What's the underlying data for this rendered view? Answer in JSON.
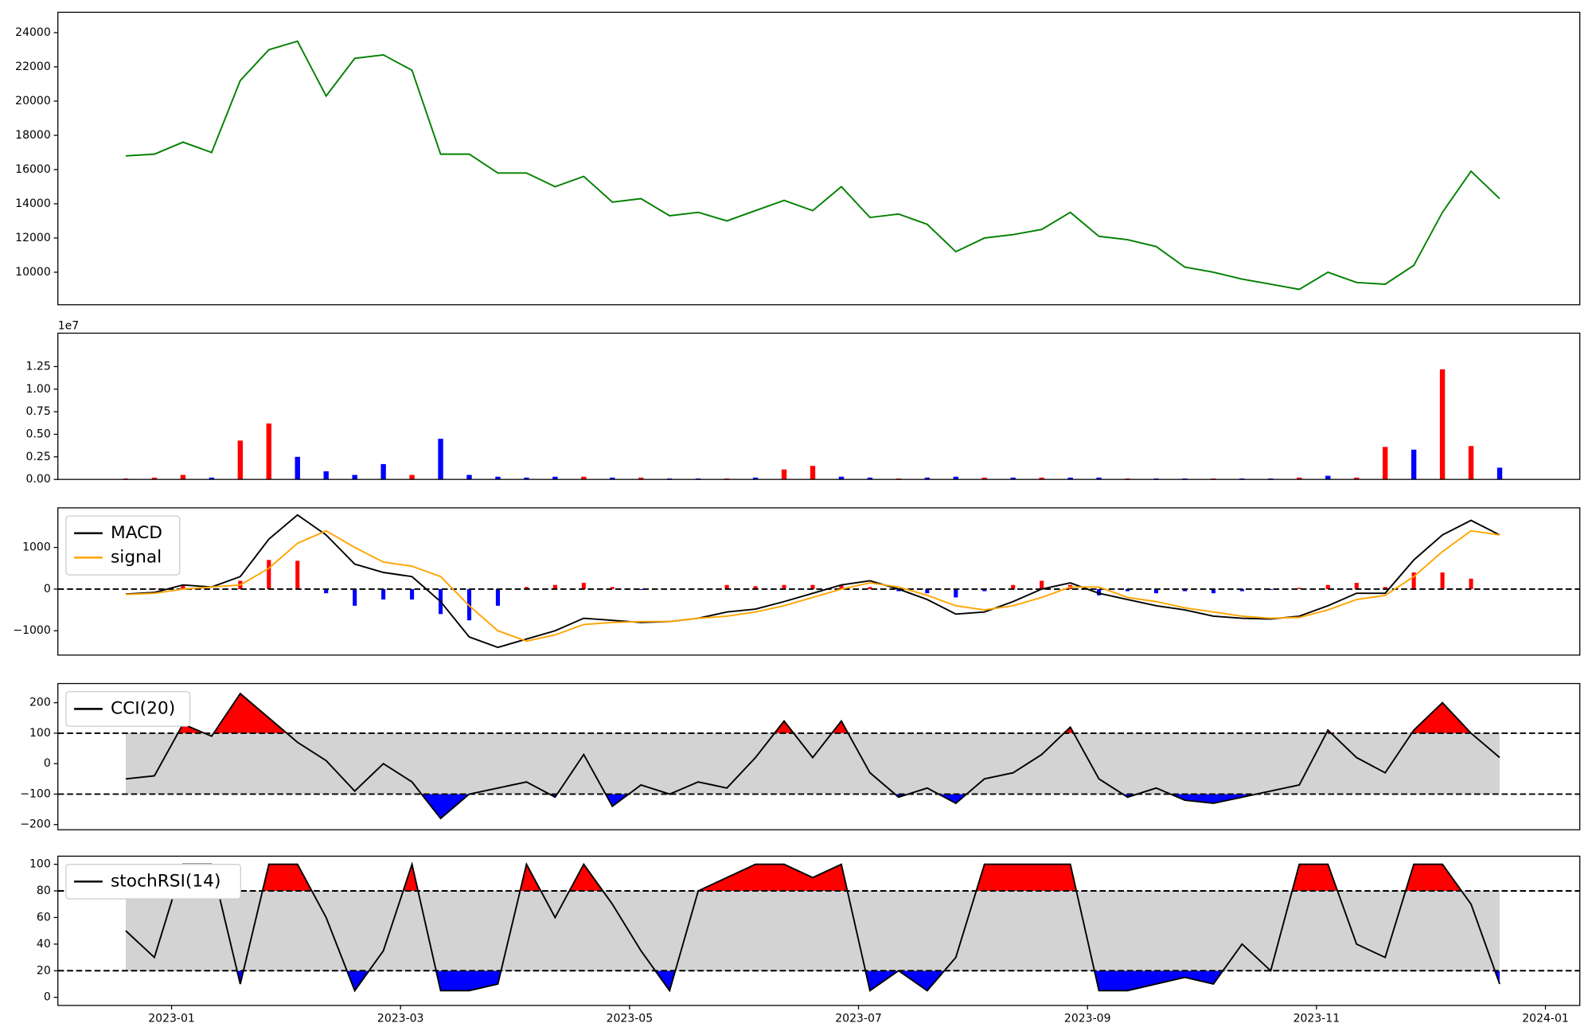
{
  "chart_data": {
    "type": "panels",
    "x": [
      -0.4,
      -0.15,
      0.1,
      0.35,
      0.6,
      0.85,
      1.1,
      1.35,
      1.6,
      1.85,
      2.1,
      2.35,
      2.6,
      2.85,
      3.1,
      3.35,
      3.6,
      3.85,
      4.1,
      4.35,
      4.6,
      4.85,
      5.1,
      5.35,
      5.6,
      5.85,
      6.1,
      6.35,
      6.6,
      6.85,
      7.1,
      7.35,
      7.6,
      7.85,
      8.1,
      8.35,
      8.6,
      8.85,
      9.1,
      9.35,
      9.6,
      9.85,
      10.1,
      10.35,
      10.6,
      10.85,
      11.1,
      11.35,
      11.6
    ],
    "xlim": [
      -0.993,
      12.3
    ],
    "xticks": [
      {
        "value": 0,
        "label": "2023-01"
      },
      {
        "value": 2,
        "label": "2023-03"
      },
      {
        "value": 4,
        "label": "2023-05"
      },
      {
        "value": 6,
        "label": "2023-07"
      },
      {
        "value": 8,
        "label": "2023-09"
      },
      {
        "value": 10,
        "label": "2023-11"
      },
      {
        "value": 12,
        "label": "2024-01"
      }
    ],
    "panels": [
      {
        "type": "line",
        "ylim": [
          8100,
          25190
        ],
        "yticks": [
          10000,
          12000,
          14000,
          16000,
          18000,
          20000,
          22000,
          24000
        ],
        "color": "green",
        "values": [
          16800,
          16900,
          17600,
          17000,
          21200,
          23000,
          23500,
          20300,
          22500,
          22700,
          21800,
          16900,
          16900,
          15800,
          15800,
          15000,
          15600,
          14100,
          14300,
          13300,
          13500,
          13000,
          13600,
          14200,
          13600,
          15000,
          13200,
          13400,
          12800,
          11200,
          12000,
          12200,
          12500,
          13500,
          12100,
          11900,
          11500,
          10300,
          10000,
          9600,
          9300,
          9000,
          10000,
          9400,
          9300,
          10400,
          13500,
          15900,
          14300
        ]
      },
      {
        "type": "bar",
        "ylim": [
          0,
          1.62
        ],
        "offset_label": "1e7",
        "yticks": [
          {
            "value": 0,
            "label": "0.00"
          },
          {
            "value": 0.25,
            "label": "0.25"
          },
          {
            "value": 0.5,
            "label": "0.50"
          },
          {
            "value": 0.75,
            "label": "0.75"
          },
          {
            "value": 1,
            "label": "1.00"
          },
          {
            "value": 1.25,
            "label": "1.25"
          }
        ],
        "values": [
          0.01,
          0.02,
          0.05,
          0.02,
          0.43,
          0.62,
          0.25,
          0.09,
          0.05,
          0.17,
          0.05,
          0.45,
          0.05,
          0.03,
          0.02,
          0.03,
          0.03,
          0.02,
          0.02,
          0.01,
          0.01,
          0.01,
          0.02,
          0.11,
          0.15,
          0.03,
          0.02,
          0.01,
          0.02,
          0.03,
          0.02,
          0.02,
          0.02,
          0.02,
          0.02,
          0.01,
          0.01,
          0.01,
          0.01,
          0.01,
          0.01,
          0.02,
          0.04,
          0.02,
          0.36,
          0.33,
          1.22,
          0.37,
          0.13
        ],
        "colors": [
          "red",
          "red",
          "red",
          "blue",
          "red",
          "red",
          "blue",
          "blue",
          "blue",
          "blue",
          "red",
          "blue",
          "blue",
          "blue",
          "blue",
          "blue",
          "red",
          "blue",
          "red",
          "blue",
          "blue",
          "red",
          "blue",
          "red",
          "red",
          "blue",
          "blue",
          "red",
          "blue",
          "blue",
          "red",
          "blue",
          "red",
          "blue",
          "blue",
          "red",
          "blue",
          "blue",
          "red",
          "blue",
          "blue",
          "red",
          "blue",
          "red",
          "red",
          "blue",
          "red",
          "red",
          "blue"
        ]
      },
      {
        "type": "macd",
        "ylim": [
          -1585,
          1951
        ],
        "yticks": [
          {
            "value": -1000,
            "label": "−1000"
          },
          0,
          1000
        ],
        "zero_line": 0,
        "legend": "upper left",
        "series": [
          {
            "name": "MACD",
            "color": "black",
            "values": [
              -120,
              -80,
              100,
              50,
              300,
              1200,
              1780,
              1300,
              600,
              400,
              300,
              -300,
              -1150,
              -1400,
              -1200,
              -1000,
              -700,
              -750,
              -800,
              -780,
              -700,
              -550,
              -480,
              -300,
              -100,
              100,
              200,
              0,
              -250,
              -600,
              -550,
              -300,
              0,
              150,
              -100,
              -250,
              -400,
              -500,
              -650,
              -700,
              -720,
              -650,
              -400,
              -100,
              -100,
              700,
              1300,
              1650,
              1300
            ]
          },
          {
            "name": "signal",
            "color": "orange",
            "values": [
              -130,
              -100,
              0,
              50,
              100,
              500,
              1100,
              1400,
              1000,
              650,
              550,
              300,
              -400,
              -1000,
              -1250,
              -1100,
              -850,
              -800,
              -780,
              -780,
              -700,
              -650,
              -550,
              -400,
              -200,
              0,
              150,
              50,
              -150,
              -400,
              -500,
              -400,
              -200,
              50,
              50,
              -200,
              -300,
              -450,
              -550,
              -650,
              -700,
              -680,
              -500,
              -250,
              -150,
              300,
              900,
              1400,
              1300
            ]
          }
        ],
        "histogram": {
          "pos_color": "red",
          "neg_color": "blue",
          "values": [
            10,
            20,
            100,
            0,
            200,
            700,
            680,
            -100,
            -400,
            -250,
            -250,
            -600,
            -750,
            -400,
            50,
            100,
            150,
            50,
            -20,
            0,
            0,
            100,
            70,
            100,
            100,
            100,
            50,
            -50,
            -100,
            -200,
            -50,
            100,
            200,
            100,
            -150,
            -50,
            -100,
            -50,
            -100,
            -50,
            -20,
            30,
            100,
            150,
            50,
            400,
            400,
            250,
            0
          ]
        }
      },
      {
        "type": "oscillator",
        "ylim": [
          -217,
          263
        ],
        "yticks": [
          {
            "value": -200,
            "label": "−200"
          },
          {
            "value": -100,
            "label": "−100"
          },
          0,
          100,
          200
        ],
        "legend": "upper left",
        "thresholds": [
          100,
          -100
        ],
        "band_color": "lightgray",
        "upper_color": "red",
        "lower_color": "blue",
        "series": [
          {
            "name": "CCI(20)",
            "color": "black",
            "values": [
              -50,
              -40,
              130,
              90,
              230,
              150,
              70,
              10,
              -90,
              0,
              -60,
              -180,
              -100,
              -80,
              -60,
              -110,
              30,
              -140,
              -70,
              -100,
              -60,
              -80,
              20,
              140,
              20,
              140,
              -30,
              -110,
              -80,
              -130,
              -50,
              -30,
              30,
              120,
              -50,
              -110,
              -80,
              -120,
              -130,
              -110,
              -90,
              -70,
              110,
              20,
              -30,
              110,
              200,
              100,
              20
            ]
          }
        ]
      },
      {
        "type": "oscillator",
        "ylim": [
          -6.1,
          106.1
        ],
        "yticks": [
          0,
          20,
          40,
          60,
          80,
          100
        ],
        "legend": "upper left",
        "thresholds": [
          80,
          20
        ],
        "band_color": "lightgray",
        "upper_color": "red",
        "lower_color": "blue",
        "series": [
          {
            "name": "stochRSI(14)",
            "color": "black",
            "values": [
              50,
              30,
              100,
              100,
              10,
              100,
              100,
              60,
              5,
              35,
              100,
              5,
              5,
              10,
              100,
              60,
              100,
              70,
              35,
              5,
              80,
              90,
              100,
              100,
              90,
              100,
              5,
              20,
              5,
              30,
              100,
              100,
              100,
              100,
              5,
              5,
              10,
              15,
              10,
              40,
              20,
              100,
              100,
              40,
              30,
              100,
              100,
              70,
              10
            ]
          }
        ]
      }
    ]
  }
}
